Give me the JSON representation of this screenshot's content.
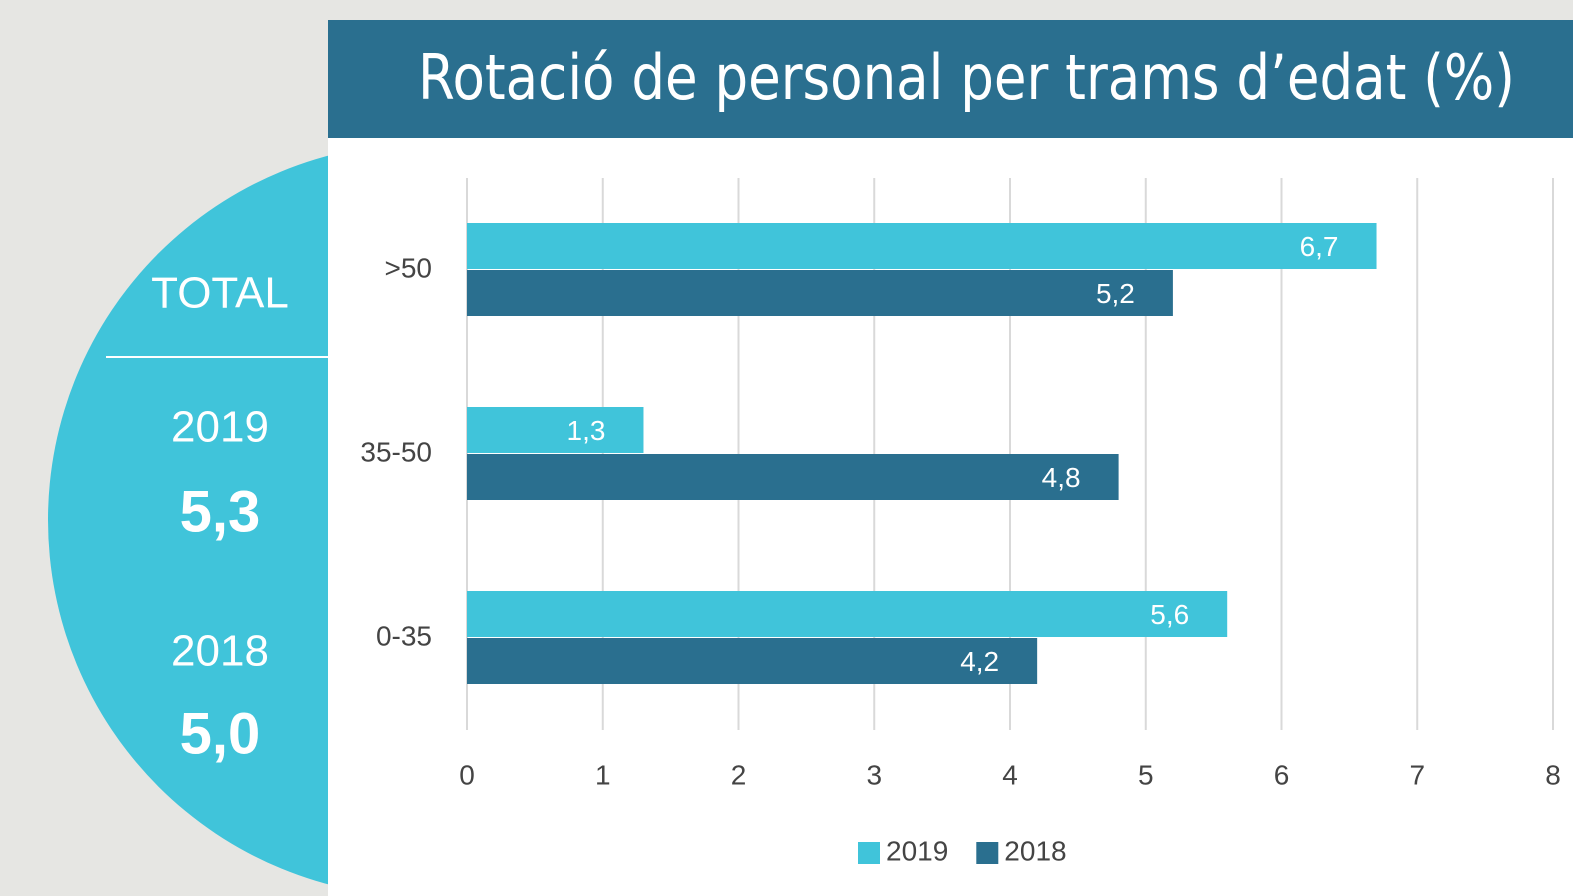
{
  "chart_data": {
    "type": "barh",
    "title": "Rotació de personal per trams d’edat (%)",
    "categories": [
      "0-35",
      "35-50",
      ">50"
    ],
    "series": [
      {
        "name": "2019",
        "color": "#40c4da",
        "values": [
          5.6,
          1.3,
          6.7
        ],
        "value_labels": [
          "5,6",
          "1,3",
          "6,7"
        ]
      },
      {
        "name": "2018",
        "color": "#2a6f8f",
        "values": [
          4.2,
          4.8,
          5.2
        ],
        "value_labels": [
          "4,2",
          "4,8",
          "5,2"
        ]
      }
    ],
    "xlim": [
      0,
      8
    ],
    "xticks": [
      0,
      1,
      2,
      3,
      4,
      5,
      6,
      7,
      8
    ],
    "grid": true,
    "legend": "bottom",
    "summary": {
      "label": "TOTAL",
      "items": [
        {
          "year": "2019",
          "value": "5,3"
        },
        {
          "year": "2018",
          "value": "5,0"
        }
      ]
    }
  }
}
